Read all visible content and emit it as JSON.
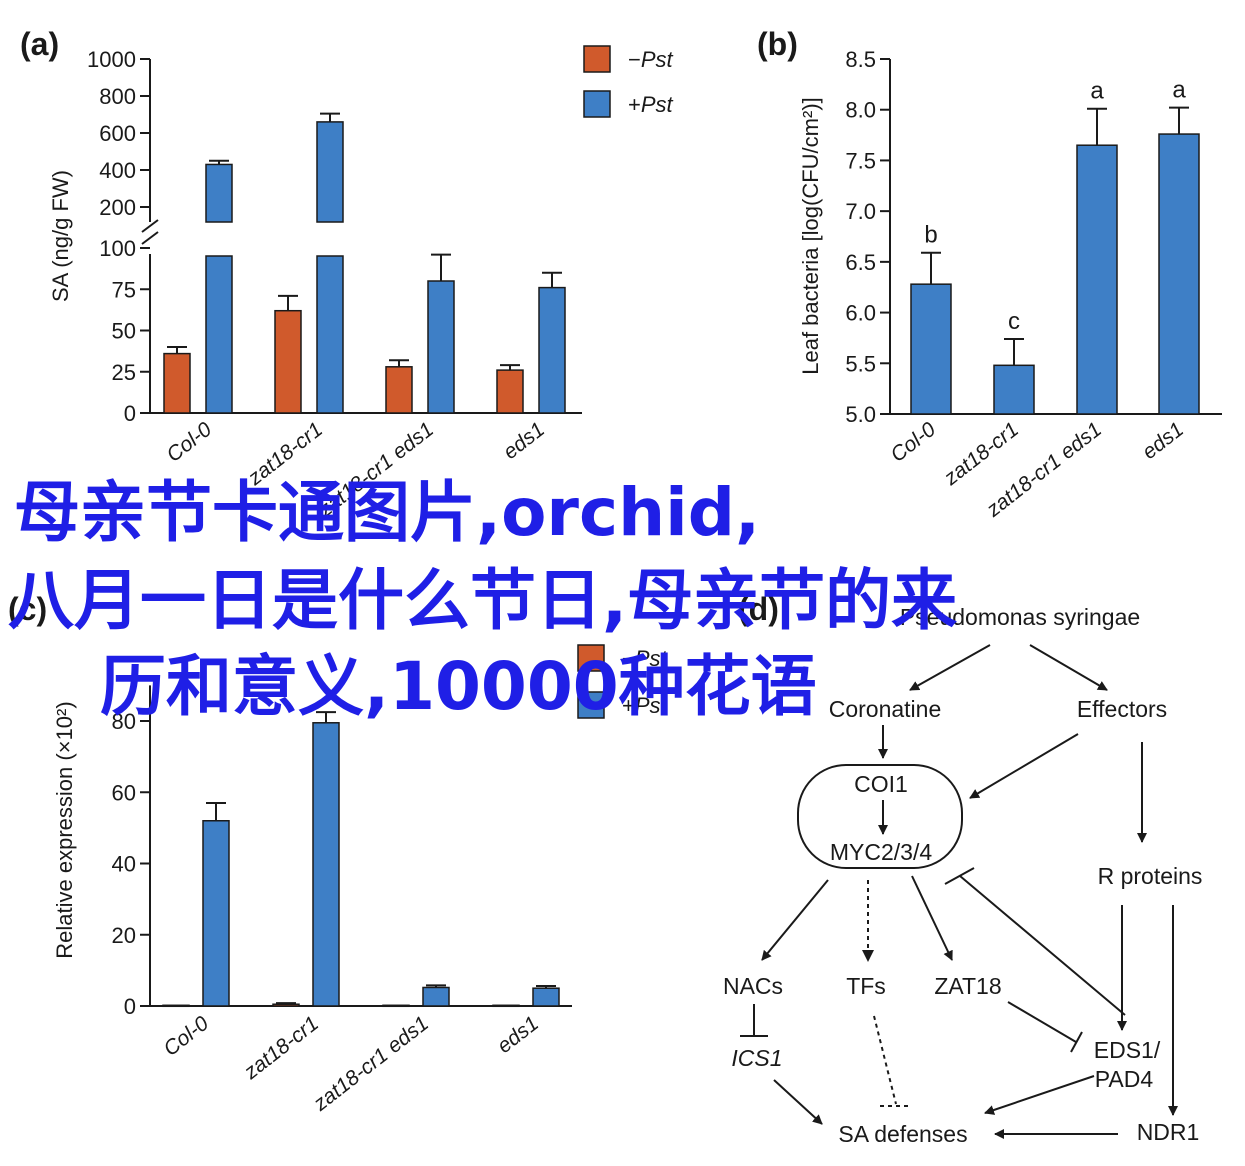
{
  "panels": {
    "a": {
      "letter": "(a)"
    },
    "b": {
      "letter": "(b)"
    },
    "c": {
      "letter": "(c)"
    },
    "d": {
      "letter": "(d)"
    }
  },
  "overlay": {
    "line1": "母亲节卡通图片,orchid,",
    "line2": "八月一日是什么节日,母亲节的来",
    "line3": "历和意义,10000种花语"
  },
  "colors": {
    "minus_pst": "#d05a2c",
    "plus_pst": "#3e7fc6"
  },
  "chart_data": [
    {
      "id": "a",
      "type": "bar",
      "ylabel": "SA (ng/g FW)",
      "categories": [
        "Col-0",
        "zat18-cr1",
        "zat18-cr1 eds1",
        "eds1"
      ],
      "series": [
        {
          "name": "−Pst",
          "legend_sign": "−",
          "legend_text": "Pst",
          "values": [
            36,
            62,
            28,
            26
          ],
          "errors": [
            4,
            9,
            4,
            3
          ]
        },
        {
          "name": "+Pst",
          "legend_sign": "+",
          "legend_text": "Pst",
          "values": [
            430,
            660,
            80,
            76
          ],
          "errors": [
            20,
            45,
            16,
            9
          ]
        }
      ],
      "axis_break": true,
      "y_lower_ticks": [
        "0",
        "25",
        "50",
        "75",
        "100"
      ],
      "y_upper_ticks": [
        "200",
        "400",
        "600",
        "800",
        "1000"
      ]
    },
    {
      "id": "b",
      "type": "bar",
      "ylabel": "Leaf bacteria [log(CFU/cm²)]",
      "categories": [
        "Col-0",
        "zat18-cr1",
        "zat18-cr1 eds1",
        "eds1"
      ],
      "values": [
        6.28,
        5.48,
        7.65,
        7.76
      ],
      "errors": [
        0.31,
        0.26,
        0.36,
        0.26
      ],
      "significance": [
        "b",
        "c",
        "a",
        "a"
      ],
      "ylim": [
        5.0,
        8.5
      ],
      "y_ticks": [
        "5.0",
        "5.5",
        "6.0",
        "6.5",
        "7.0",
        "7.5",
        "8.0",
        "8.5"
      ]
    },
    {
      "id": "c",
      "type": "bar",
      "ylabel": "Relative expression (×10²)",
      "categories": [
        "Col-0",
        "zat18-cr1",
        "zat18-cr1 eds1",
        "eds1"
      ],
      "series": [
        {
          "name": "−Pst",
          "legend_sign": "−",
          "legend_text": "Pst",
          "values": [
            0.2,
            0.5,
            0.2,
            0.2
          ],
          "errors": [
            0,
            0.3,
            0,
            0
          ]
        },
        {
          "name": "+Pst",
          "legend_sign": "+",
          "legend_text": "Pst",
          "values": [
            52,
            79.5,
            5.2,
            5
          ],
          "errors": [
            5,
            3,
            0.6,
            0.6
          ]
        }
      ],
      "ylim": [
        0,
        90
      ],
      "y_ticks": [
        "0",
        "20",
        "40",
        "60",
        "80"
      ]
    }
  ],
  "diagram": {
    "nodes": {
      "pseudomonas": "Pseudomonas syringae",
      "coronatine": "Coronatine",
      "effectors": "Effectors",
      "coi1": "COI1",
      "myc": "MYC2/3/4",
      "r_proteins": "R proteins",
      "nacs": "NACs",
      "tfs": "TFs",
      "zat18": "ZAT18",
      "ics1": "ICS1",
      "eds1_l1": "EDS1/",
      "eds1_l2": "PAD4",
      "sa_def": "SA defenses",
      "ndr1": "NDR1"
    }
  }
}
